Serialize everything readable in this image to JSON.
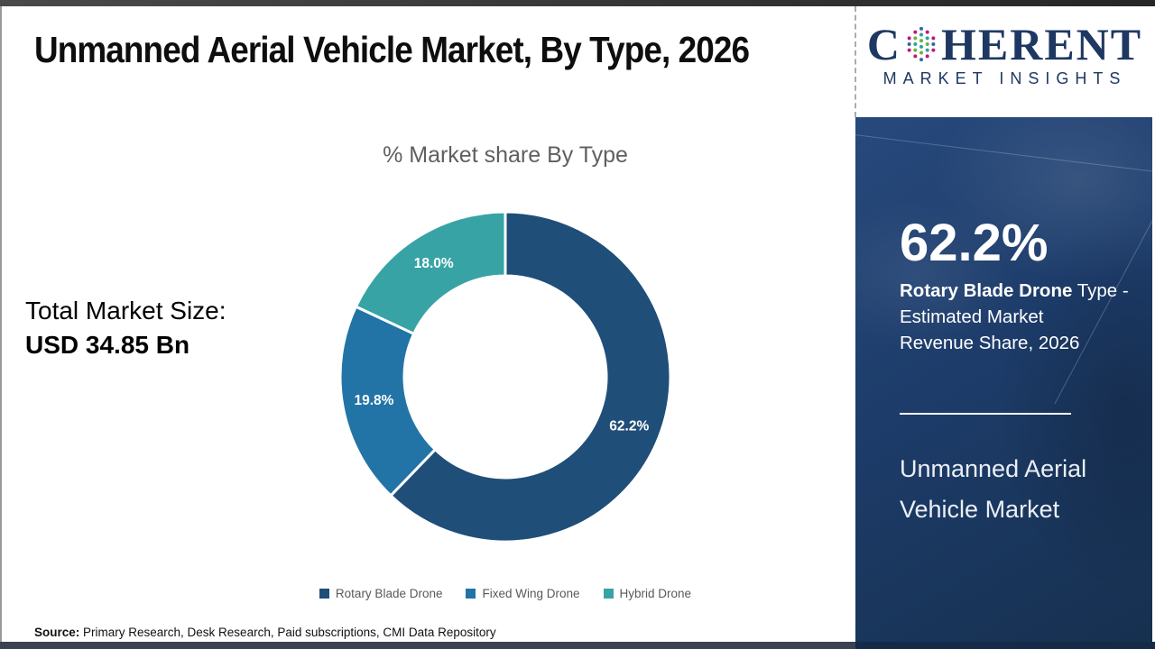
{
  "header": {
    "title": "Unmanned Aerial Vehicle Market, By Type, 2026"
  },
  "logo": {
    "word_start": "C",
    "word_end": "HERENT",
    "subtitle": "MARKET INSIGHTS",
    "brand_color": "#1e3862"
  },
  "main": {
    "chart_title": "% Market share By Type",
    "total_label": "Total Market Size:",
    "total_value": "USD 34.85 Bn",
    "source_label": "Source:",
    "source_text": " Primary Research, Desk Research, Paid subscriptions, CMI Data Repository"
  },
  "chart_data": {
    "type": "pie",
    "subtype": "donut",
    "title": "% Market share By Type",
    "categories": [
      "Rotary Blade Drone",
      "Fixed Wing Drone",
      "Hybrid Drone"
    ],
    "values": [
      62.2,
      19.8,
      18.0
    ],
    "labels": [
      "62.2%",
      "19.8%",
      "18.0%"
    ],
    "colors": [
      "#1f4e79",
      "#2274a7",
      "#38a3a4"
    ],
    "start_angle_deg": 0,
    "direction": "clockwise",
    "inner_radius_ratio": 0.61,
    "legend_position": "bottom",
    "label_color": "#ffffff"
  },
  "sidebar": {
    "bg_color": "#1d3c6a",
    "stat_value": "62.2%",
    "desc_bold": "Rotary Blade Drone",
    "desc_line1_rest": " Type -",
    "desc_line2": "Estimated Market",
    "desc_line3": "Revenue Share, 2026",
    "footer_line1": "Unmanned Aerial",
    "footer_line2": "Vehicle Market"
  }
}
